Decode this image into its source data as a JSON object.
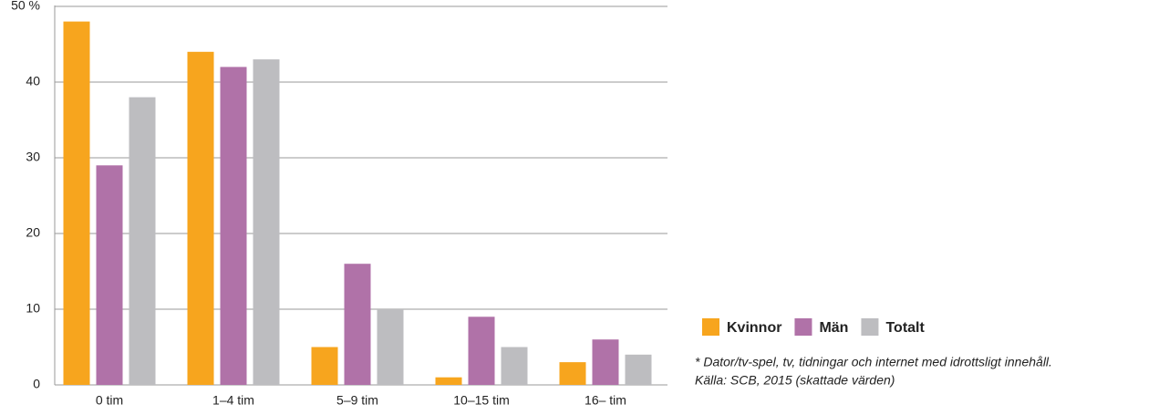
{
  "chart_data": {
    "type": "bar",
    "categories": [
      "0 tim",
      "1–4 tim",
      "5–9 tim",
      "10–15 tim",
      "16– tim"
    ],
    "series": [
      {
        "name": "Kvinnor",
        "color": "#f7a51e",
        "values": [
          48,
          44,
          5,
          1,
          3
        ]
      },
      {
        "name": "Män",
        "color": "#b072a8",
        "values": [
          29,
          42,
          16,
          9,
          6
        ]
      },
      {
        "name": "Totalt",
        "color": "#bdbdc0",
        "values": [
          38,
          43,
          10,
          5,
          4
        ]
      }
    ],
    "ylim": [
      0,
      50
    ],
    "yticks": [
      0,
      10,
      20,
      30,
      40,
      {
        "value": 50,
        "label": "50 %"
      }
    ],
    "grid": true,
    "legend": "right",
    "notes": [
      "* Dator/tv-spel, tv, tidningar och internet med idrottsligt innehåll.",
      "Källa: SCB, 2015 (skattade värden)"
    ]
  }
}
